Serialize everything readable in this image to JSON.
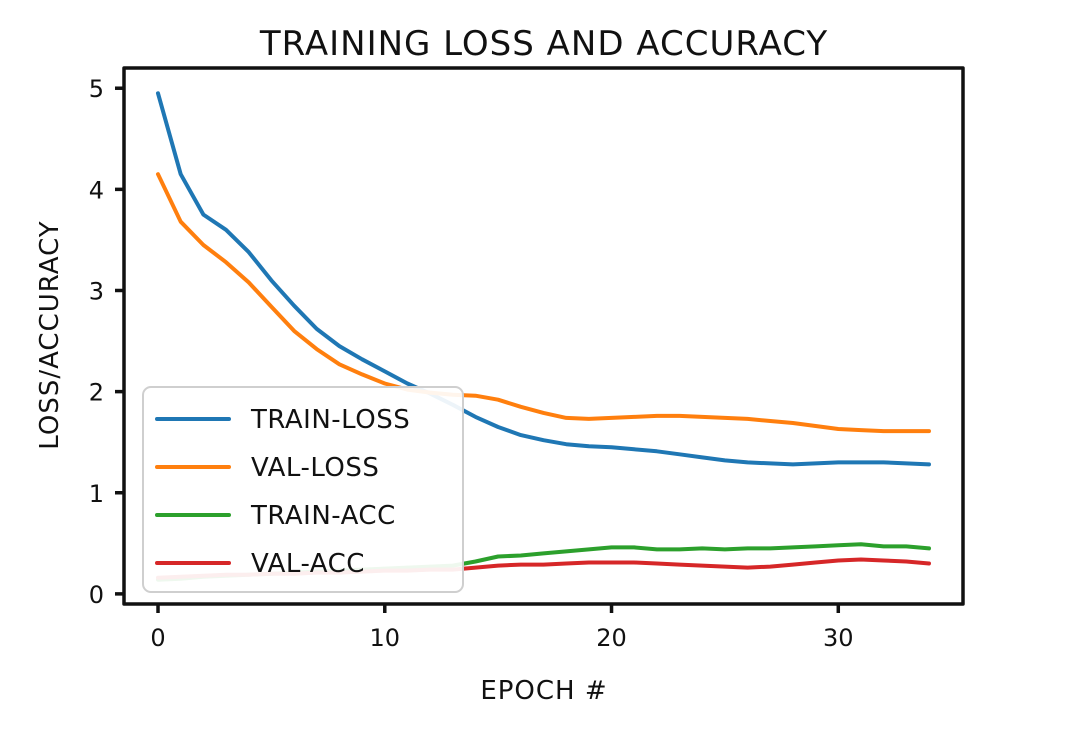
{
  "chart_data": {
    "type": "line",
    "title": "TRAINING LOSS AND ACCURACY",
    "xlabel": "EPOCH #",
    "ylabel": "LOSS/ACCURACY",
    "xlim": [
      -1.5,
      35.5
    ],
    "ylim": [
      -0.1,
      5.2
    ],
    "xticks": [
      0,
      10,
      20,
      30
    ],
    "yticks": [
      0,
      1,
      2,
      3,
      4,
      5
    ],
    "grid": false,
    "legend_position": "lower-left",
    "x": [
      0,
      1,
      2,
      3,
      4,
      5,
      6,
      7,
      8,
      9,
      10,
      11,
      12,
      13,
      14,
      15,
      16,
      17,
      18,
      19,
      20,
      21,
      22,
      23,
      24,
      25,
      26,
      27,
      28,
      29,
      30,
      31,
      32,
      33,
      34
    ],
    "series": [
      {
        "name": "TRAIN-LOSS",
        "color": "#1f77b4",
        "values": [
          4.95,
          4.15,
          3.75,
          3.6,
          3.38,
          3.1,
          2.85,
          2.62,
          2.45,
          2.32,
          2.2,
          2.08,
          1.98,
          1.87,
          1.75,
          1.65,
          1.57,
          1.52,
          1.48,
          1.46,
          1.45,
          1.43,
          1.41,
          1.38,
          1.35,
          1.32,
          1.3,
          1.29,
          1.28,
          1.29,
          1.3,
          1.3,
          1.3,
          1.29,
          1.28
        ]
      },
      {
        "name": "VAL-LOSS",
        "color": "#ff7f0e",
        "values": [
          4.15,
          3.68,
          3.45,
          3.28,
          3.08,
          2.84,
          2.6,
          2.42,
          2.27,
          2.17,
          2.08,
          2.02,
          1.99,
          1.97,
          1.96,
          1.92,
          1.85,
          1.79,
          1.74,
          1.73,
          1.74,
          1.75,
          1.76,
          1.76,
          1.75,
          1.74,
          1.73,
          1.71,
          1.69,
          1.66,
          1.63,
          1.62,
          1.61,
          1.61,
          1.61
        ]
      },
      {
        "name": "TRAIN-ACC",
        "color": "#2ca02c",
        "values": [
          0.14,
          0.15,
          0.17,
          0.18,
          0.19,
          0.2,
          0.21,
          0.22,
          0.23,
          0.24,
          0.25,
          0.26,
          0.27,
          0.28,
          0.32,
          0.37,
          0.38,
          0.4,
          0.42,
          0.44,
          0.46,
          0.46,
          0.44,
          0.44,
          0.45,
          0.44,
          0.45,
          0.45,
          0.46,
          0.47,
          0.48,
          0.49,
          0.47,
          0.47,
          0.45
        ]
      },
      {
        "name": "VAL-ACC",
        "color": "#d62728",
        "values": [
          0.16,
          0.17,
          0.18,
          0.19,
          0.19,
          0.2,
          0.2,
          0.21,
          0.21,
          0.22,
          0.23,
          0.23,
          0.24,
          0.24,
          0.26,
          0.28,
          0.29,
          0.29,
          0.3,
          0.31,
          0.31,
          0.31,
          0.3,
          0.29,
          0.28,
          0.27,
          0.26,
          0.27,
          0.29,
          0.31,
          0.33,
          0.34,
          0.33,
          0.32,
          0.3
        ]
      }
    ]
  }
}
